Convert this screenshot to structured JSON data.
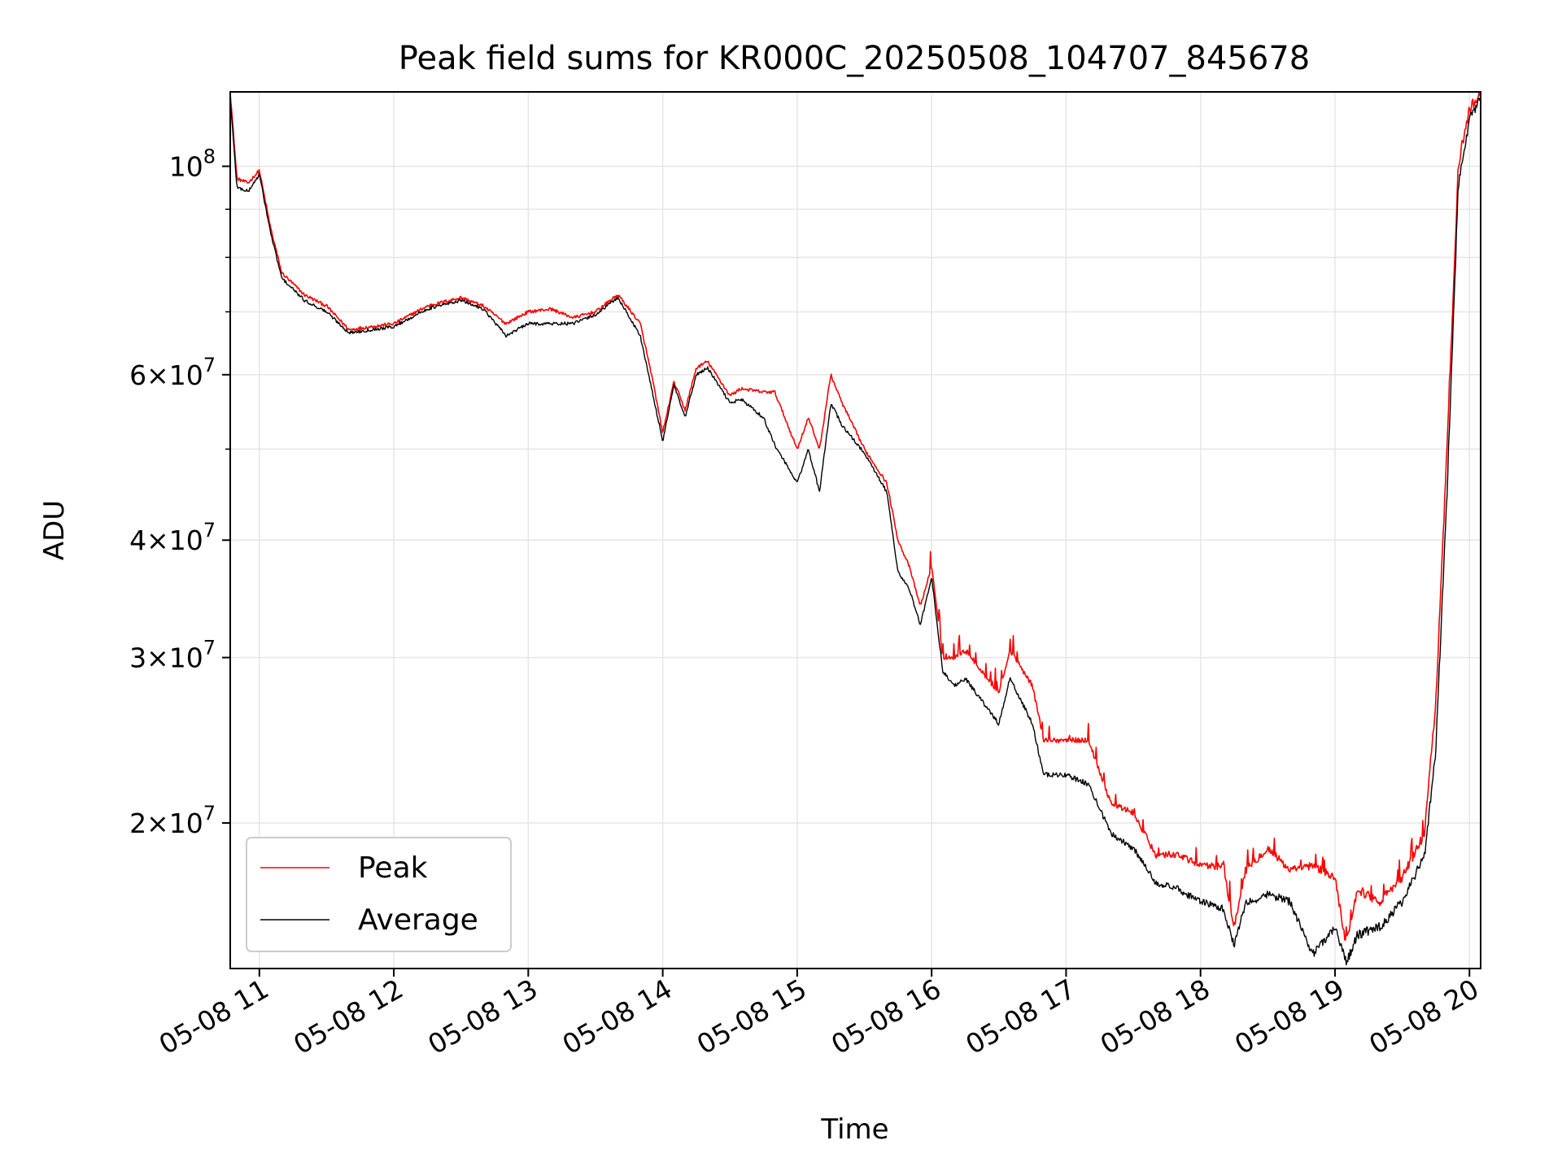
{
  "chart_data": {
    "type": "line",
    "title": "Peak field sums for KR000C_20250508_104707_845678",
    "xlabel": "Time",
    "ylabel": "ADU",
    "yscale": "log",
    "ylim": [
      14000000,
      120000000
    ],
    "xlim": [
      "05-08 10:47",
      "05-08 20:05"
    ],
    "x_ticks": [
      "05-08 11",
      "05-08 12",
      "05-08 13",
      "05-08 14",
      "05-08 15",
      "05-08 16",
      "05-08 17",
      "05-08 18",
      "05-08 19",
      "05-08 20"
    ],
    "y_ticks": [
      {
        "value": 20000000,
        "mantissa": "2",
        "base": "10",
        "exp": "7"
      },
      {
        "value": 30000000,
        "mantissa": "3",
        "base": "10",
        "exp": "7"
      },
      {
        "value": 40000000,
        "mantissa": "4",
        "base": "10",
        "exp": "7"
      },
      {
        "value": 60000000,
        "mantissa": "6",
        "base": "10",
        "exp": "7"
      },
      {
        "value": 100000000,
        "mantissa": "",
        "base": "10",
        "exp": "8"
      }
    ],
    "y_minor_ticks": [
      50000000,
      70000000,
      80000000,
      90000000
    ],
    "grid": true,
    "legend": "lower-left",
    "x": [
      "05-08 10:47",
      "05-08 10:50",
      "05-08 10:55",
      "05-08 11:00",
      "05-08 11:05",
      "05-08 11:10",
      "05-08 11:15",
      "05-08 11:20",
      "05-08 11:30",
      "05-08 11:40",
      "05-08 11:50",
      "05-08 12:00",
      "05-08 12:15",
      "05-08 12:30",
      "05-08 12:40",
      "05-08 12:50",
      "05-08 13:00",
      "05-08 13:10",
      "05-08 13:20",
      "05-08 13:30",
      "05-08 13:40",
      "05-08 13:50",
      "05-08 13:55",
      "05-08 14:00",
      "05-08 14:05",
      "05-08 14:10",
      "05-08 14:15",
      "05-08 14:20",
      "05-08 14:30",
      "05-08 14:35",
      "05-08 14:45",
      "05-08 14:50",
      "05-08 15:00",
      "05-08 15:05",
      "05-08 15:10",
      "05-08 15:15",
      "05-08 15:20",
      "05-08 15:30",
      "05-08 15:40",
      "05-08 15:45",
      "05-08 15:50",
      "05-08 15:55",
      "05-08 16:00",
      "05-08 16:05",
      "05-08 16:10",
      "05-08 16:15",
      "05-08 16:30",
      "05-08 16:35",
      "05-08 16:45",
      "05-08 16:50",
      "05-08 17:00",
      "05-08 17:10",
      "05-08 17:20",
      "05-08 17:30",
      "05-08 17:40",
      "05-08 17:50",
      "05-08 18:00",
      "05-08 18:10",
      "05-08 18:15",
      "05-08 18:20",
      "05-08 18:30",
      "05-08 18:40",
      "05-08 18:50",
      "05-08 19:00",
      "05-08 19:05",
      "05-08 19:10",
      "05-08 19:20",
      "05-08 19:30",
      "05-08 19:40",
      "05-08 19:45",
      "05-08 19:50",
      "05-08 19:55",
      "05-08 20:00",
      "05-08 20:05"
    ],
    "series": [
      {
        "name": "Peak",
        "color": "#ff0000",
        "values": [
          120000000,
          97000000,
          96000000,
          99000000,
          86000000,
          77000000,
          75000000,
          73000000,
          71000000,
          67000000,
          67500000,
          68000000,
          71000000,
          72500000,
          71000000,
          68000000,
          70000000,
          70500000,
          69000000,
          70000000,
          73000000,
          68000000,
          60000000,
          52000000,
          59000000,
          55000000,
          61000000,
          62000000,
          57000000,
          58000000,
          57500000,
          57500000,
          50000000,
          54000000,
          50000000,
          60000000,
          56000000,
          50000000,
          46000000,
          40000000,
          37500000,
          34000000,
          37500000,
          30000000,
          30000000,
          30500000,
          27500000,
          30500000,
          28000000,
          24500000,
          24500000,
          24500000,
          21000000,
          20500000,
          18500000,
          18500000,
          18000000,
          18000000,
          15500000,
          17800000,
          18800000,
          17800000,
          18000000,
          17500000,
          14800000,
          17000000,
          16500000,
          17500000,
          19500000,
          27000000,
          50000000,
          100000000,
          115000000,
          120000000
        ]
      },
      {
        "name": "Average",
        "color": "#000000",
        "values": [
          118000000,
          95000000,
          94000000,
          98000000,
          85000000,
          76000000,
          74000000,
          72000000,
          70000000,
          66500000,
          67000000,
          67500000,
          70500000,
          72000000,
          70500000,
          66000000,
          68000000,
          68000000,
          68000000,
          69500000,
          72500000,
          66000000,
          58000000,
          51000000,
          58500000,
          54000000,
          60000000,
          61000000,
          56000000,
          56500000,
          54000000,
          50500000,
          46000000,
          50000000,
          45000000,
          56000000,
          53000000,
          49500000,
          45000000,
          37000000,
          35500000,
          32500000,
          36500000,
          29000000,
          28000000,
          28500000,
          25500000,
          28500000,
          25500000,
          22500000,
          22500000,
          22000000,
          19500000,
          18800000,
          17300000,
          17000000,
          16500000,
          16200000,
          14800000,
          16400000,
          16800000,
          16500000,
          14500000,
          15500000,
          14200000,
          15200000,
          15500000,
          16500000,
          18500000,
          24000000,
          45000000,
          95000000,
          112000000,
          118000000
        ]
      }
    ]
  }
}
